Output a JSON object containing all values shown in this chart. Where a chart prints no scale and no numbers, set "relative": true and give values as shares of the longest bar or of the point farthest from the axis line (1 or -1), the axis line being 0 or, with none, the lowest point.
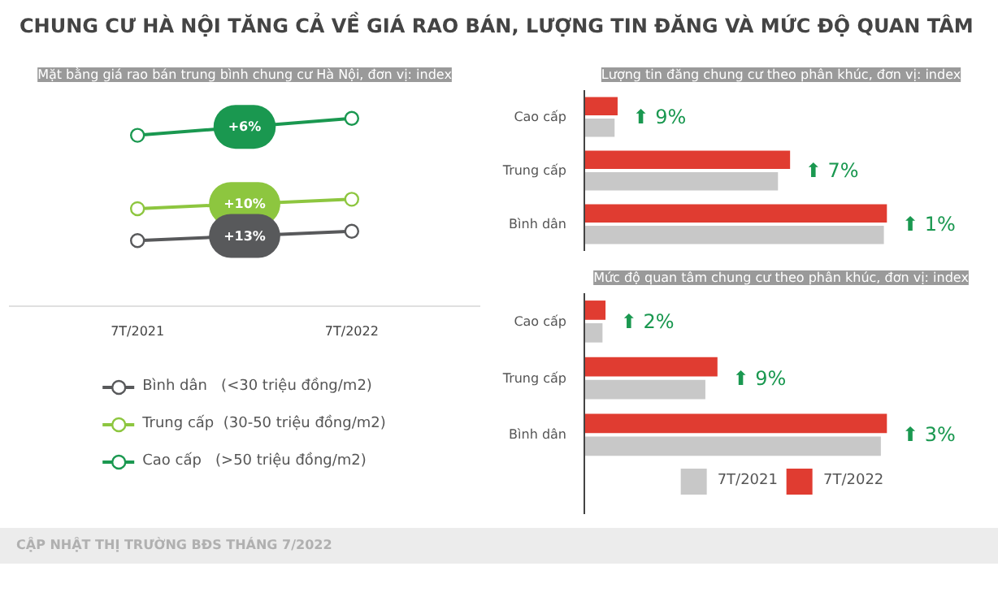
{
  "chart_data": [
    {
      "type": "line",
      "title": "CHUNG CƯ HÀ NỘI TĂNG CẢ VỀ GIÁ RAO BÁN, LƯỢNG TIN ĐĂNG VÀ MỨC ĐỘ QUAN TÂM",
      "subtitle": "Mặt bằng giá rao bán trung bình chung cư Hà Nội, đơn vị: index",
      "categories": [
        "7T/2021",
        "7T/2022"
      ],
      "relative": true,
      "marker": "circle",
      "legend": "bottom",
      "grid": false,
      "series": [
        {
          "name": "Bình dân   (<30 triệu đồng/m2)",
          "color": "#58595b",
          "values": [
            0.35,
            0.4
          ]
        },
        {
          "name": "Trung cấp  (30-50 triệu đồng/m2)",
          "color": "#8dc63f",
          "values": [
            0.52,
            0.57
          ]
        },
        {
          "name": "Cao cấp   (>50 triệu đồng/m2)",
          "color": "#1a9850",
          "values": [
            0.91,
            1.0
          ]
        }
      ],
      "annotations": [
        "+6%",
        "+10%",
        "+13%",
        "CẬP NHẬT THỊ TRƯỜNG BĐS THÁNG 7/2022"
      ]
    },
    {
      "type": "bar",
      "orientation": "horizontal",
      "title": "Lượng tin đăng chung cư theo phân khúc, đơn vị: index",
      "categories": [
        "Cao cấp",
        "Trung cấp",
        "Bình dân"
      ],
      "relative": true,
      "grid": false,
      "legend": false,
      "series": [
        {
          "color": "#c8c8c8",
          "values": [
            0.1,
            0.64,
            0.99
          ]
        },
        {
          "color": "#e03c31",
          "values": [
            0.11,
            0.68,
            1.0
          ]
        }
      ],
      "annotations": [
        "⬆ 9%",
        "⬆ 7%",
        "⬆ 1%"
      ]
    },
    {
      "type": "bar",
      "orientation": "horizontal",
      "title": "Mức độ quan tâm chung cư theo phân khúc, đơn vị: index",
      "categories": [
        "Cao cấp",
        "Trung cấp",
        "Bình dân"
      ],
      "relative": true,
      "grid": false,
      "legend": "bottom",
      "series": [
        {
          "name": "7T/2021",
          "color": "#c8c8c8",
          "values": [
            0.06,
            0.4,
            0.98
          ]
        },
        {
          "name": "7T/2022",
          "color": "#e03c31",
          "values": [
            0.07,
            0.44,
            1.0
          ]
        }
      ],
      "annotations": [
        "⬆ 2%",
        "⬆ 9%",
        "⬆ 3%"
      ]
    }
  ]
}
